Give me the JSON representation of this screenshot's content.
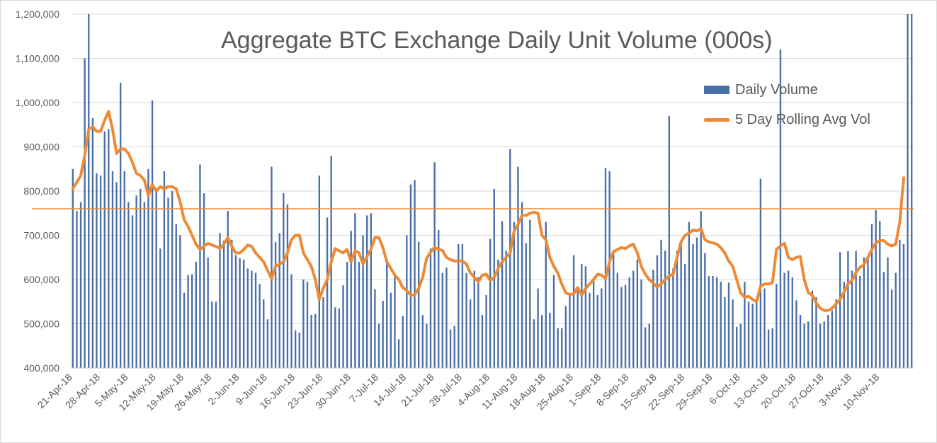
{
  "chart_data": {
    "type": "bar",
    "title": "Aggregate BTC Exchange Daily Unit Volume (000s)",
    "xlabel": "",
    "ylabel": "",
    "ylim": [
      400000,
      1200000
    ],
    "y_ticks": [
      "400,000",
      "500,000",
      "600,000",
      "700,000",
      "800,000",
      "900,000",
      "1,000,000",
      "1,100,000",
      "1,200,000"
    ],
    "x_ticks": [
      "21-Apr-18",
      "28-Apr-18",
      "5-May-18",
      "12-May-18",
      "19-May-18",
      "26-May-18",
      "2-Jun-18",
      "9-Jun-18",
      "16-Jun-18",
      "23-Jun-18",
      "30-Jun-18",
      "7-Jul-18",
      "14-Jul-18",
      "21-Jul-18",
      "28-Jul-18",
      "4-Aug-18",
      "11-Aug-18",
      "18-Aug-18",
      "25-Aug-18",
      "1-Sep-18",
      "8-Sep-18",
      "15-Sep-18",
      "22-Sep-18",
      "29-Sep-18",
      "6-Oct-18",
      "13-Oct-18",
      "20-Oct-18",
      "27-Oct-18",
      "3-Nov-18",
      "10-Nov-18"
    ],
    "x_start": "21-Apr-18",
    "x_end": "16-Nov-18",
    "grid": "horizontal",
    "legend_position": "top-right",
    "reference_line": 760000,
    "series": [
      {
        "name": "Daily Volume",
        "type": "bar",
        "color": "#4a6fa8",
        "values": [
          850000,
          755000,
          775000,
          1100000,
          1200000,
          965000,
          840000,
          835000,
          935000,
          940000,
          845000,
          820000,
          1045000,
          845000,
          775000,
          745000,
          790000,
          805000,
          775000,
          850000,
          1005000,
          800000,
          670000,
          845000,
          785000,
          800000,
          725000,
          700000,
          570000,
          610000,
          612000,
          640000,
          860000,
          795000,
          650000,
          550000,
          550000,
          705000,
          688000,
          755000,
          690000,
          655000,
          648000,
          645000,
          625000,
          620000,
          615000,
          590000,
          555000,
          510000,
          855000,
          685000,
          705000,
          795000,
          770000,
          612000,
          485000,
          480000,
          600000,
          595000,
          520000,
          522000,
          835000,
          560000,
          740000,
          880000,
          537000,
          535000,
          587000,
          640000,
          710000,
          750000,
          640000,
          700000,
          745000,
          750000,
          578000,
          500000,
          552000,
          638000,
          570000,
          610000,
          465000,
          518000,
          700000,
          815000,
          825000,
          685000,
          520000,
          500000,
          670000,
          865000,
          712000,
          615000,
          627000,
          487000,
          495000,
          680000,
          680000,
          615000,
          555000,
          620000,
          605000,
          520000,
          565000,
          692000,
          805000,
          645000,
          732000,
          665000,
          895000,
          730000,
          855000,
          775000,
          682000,
          735000,
          510000,
          580000,
          520000,
          730000,
          525000,
          610000,
          490000,
          490000,
          540000,
          570000,
          655000,
          575000,
          635000,
          630000,
          570000,
          605000,
          565000,
          580000,
          852000,
          845000,
          660000,
          615000,
          583000,
          588000,
          605000,
          620000,
          645000,
          600000,
          492000,
          500000,
          622000,
          655000,
          690000,
          665000,
          970000,
          625000,
          665000,
          685000,
          635000,
          730000,
          680000,
          695000,
          755000,
          660000,
          608000,
          608000,
          605000,
          595000,
          560000,
          593000,
          555000,
          493000,
          500000,
          595000,
          550000,
          545000,
          550000,
          828000,
          580000,
          487000,
          490000,
          590000,
          1120000,
          615000,
          620000,
          605000,
          553000,
          520000,
          500000,
          505000,
          575000,
          560000,
          500000,
          505000,
          520000,
          530000,
          555000,
          662000,
          595000,
          664000,
          620000,
          665000,
          608000,
          650000,
          652000,
          725000,
          757000,
          732000,
          617000,
          650000,
          577000,
          615000,
          690000,
          680000,
          1200000,
          1200000
        ]
      },
      {
        "name": "5 Day Rolling Avg Vol",
        "type": "line",
        "color": "#ed8a35",
        "values": [
          805000,
          820000,
          835000,
          880000,
          940000,
          945000,
          935000,
          935000,
          960000,
          980000,
          940000,
          885000,
          895000,
          895000,
          885000,
          865000,
          840000,
          835000,
          825000,
          790000,
          815000,
          800000,
          810000,
          805000,
          810000,
          810000,
          805000,
          775000,
          735000,
          720000,
          700000,
          680000,
          668000,
          675000,
          682000,
          678000,
          675000,
          670000,
          680000,
          695000,
          675000,
          660000,
          660000,
          668000,
          678000,
          675000,
          660000,
          650000,
          640000,
          620000,
          602000,
          630000,
          635000,
          640000,
          660000,
          690000,
          700000,
          700000,
          660000,
          645000,
          630000,
          600000,
          555000,
          580000,
          600000,
          640000,
          670000,
          665000,
          660000,
          668000,
          640000,
          665000,
          660000,
          635000,
          652000,
          668000,
          695000,
          695000,
          672000,
          640000,
          625000,
          610000,
          600000,
          582000,
          575000,
          565000,
          565000,
          580000,
          605000,
          648000,
          662000,
          673000,
          668000,
          666000,
          650000,
          645000,
          642000,
          642000,
          642000,
          635000,
          615000,
          605000,
          595000,
          610000,
          612000,
          598000,
          605000,
          625000,
          640000,
          650000,
          660000,
          710000,
          725000,
          745000,
          745000,
          750000,
          752000,
          750000,
          700000,
          690000,
          650000,
          630000,
          615000,
          590000,
          570000,
          566000,
          568000,
          582000,
          565000,
          580000,
          590000,
          600000,
          612000,
          610000,
          602000,
          640000,
          663000,
          668000,
          672000,
          670000,
          676000,
          680000,
          660000,
          630000,
          612000,
          600000,
          592000,
          583000,
          590000,
          600000,
          608000,
          612000,
          650000,
          685000,
          700000,
          705000,
          712000,
          710000,
          715000,
          690000,
          685000,
          683000,
          680000,
          672000,
          660000,
          642000,
          630000,
          600000,
          570000,
          560000,
          562000,
          555000,
          550000,
          585000,
          590000,
          590000,
          593000,
          668000,
          676000,
          682000,
          650000,
          645000,
          650000,
          652000,
          600000,
          570000,
          565000,
          547000,
          535000,
          530000,
          530000,
          535000,
          545000,
          555000,
          572000,
          590000,
          598000,
          615000,
          628000,
          633000,
          650000,
          668000,
          683000,
          688000,
          688000,
          680000,
          676000,
          680000,
          730000,
          830000
        ]
      }
    ]
  }
}
